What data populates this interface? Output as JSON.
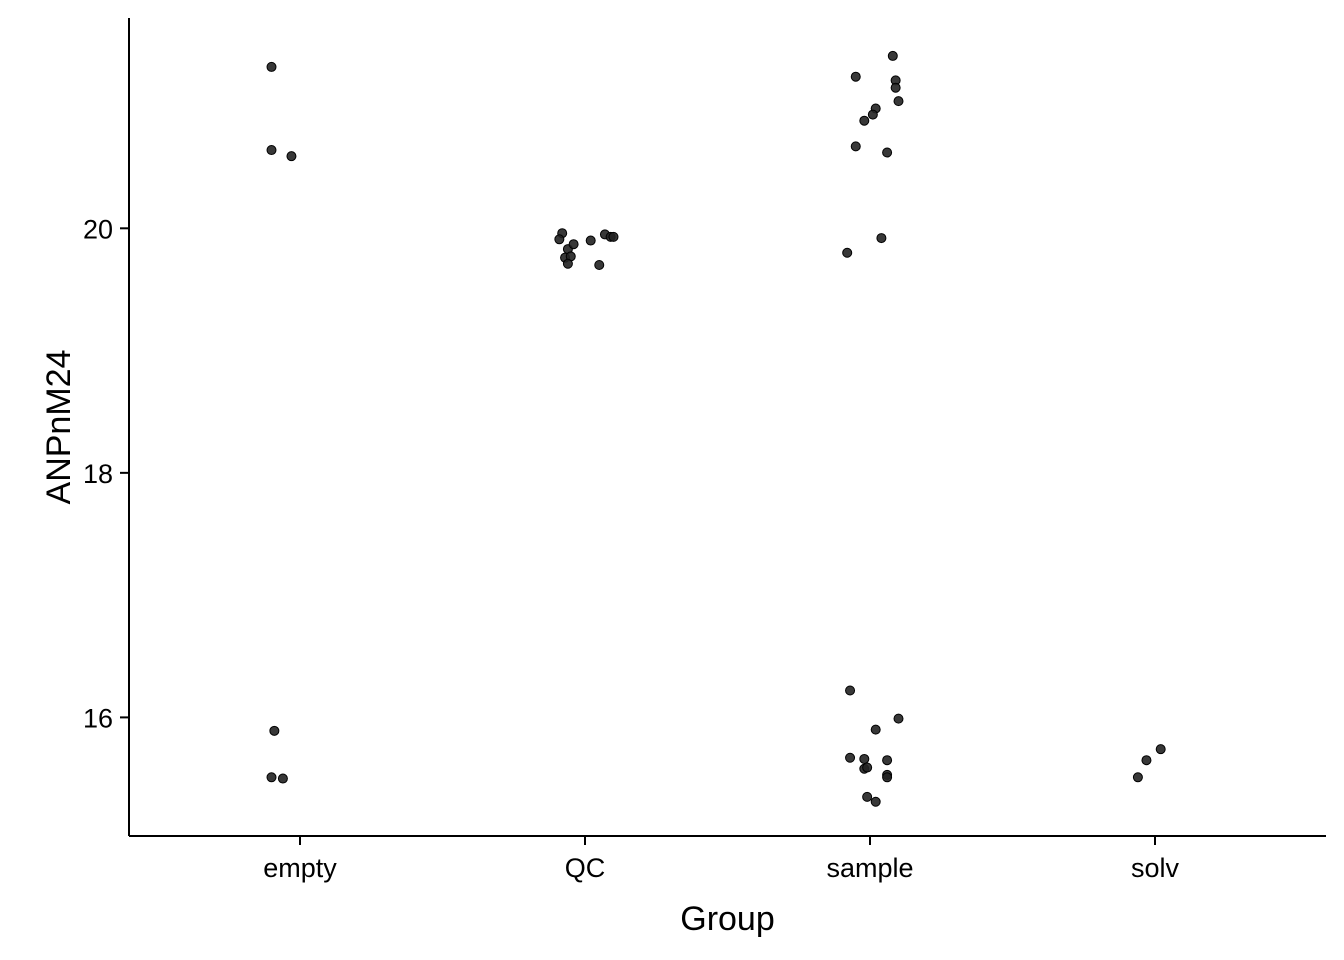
{
  "chart_data": {
    "type": "scatter",
    "title": "",
    "xlabel": "Group",
    "ylabel": "ANPnM24",
    "categories": [
      "empty",
      "QC",
      "sample",
      "solv"
    ],
    "y_ticks": [
      16,
      18,
      20
    ],
    "ylim": [
      15.03,
      21.72
    ],
    "grid": false,
    "legend": "none",
    "point_color": "#222222",
    "series": [
      {
        "category": "empty",
        "points": [
          {
            "x": -0.1,
            "y": 21.32
          },
          {
            "x": -0.1,
            "y": 20.64
          },
          {
            "x": -0.03,
            "y": 20.59
          },
          {
            "x": -0.09,
            "y": 15.89
          },
          {
            "x": -0.1,
            "y": 15.51
          },
          {
            "x": -0.06,
            "y": 15.5
          }
        ]
      },
      {
        "category": "QC",
        "points": [
          {
            "x": -0.08,
            "y": 19.96
          },
          {
            "x": -0.09,
            "y": 19.91
          },
          {
            "x": -0.06,
            "y": 19.83
          },
          {
            "x": -0.04,
            "y": 19.87
          },
          {
            "x": -0.07,
            "y": 19.76
          },
          {
            "x": -0.05,
            "y": 19.77
          },
          {
            "x": -0.06,
            "y": 19.71
          },
          {
            "x": 0.02,
            "y": 19.9
          },
          {
            "x": 0.07,
            "y": 19.95
          },
          {
            "x": 0.09,
            "y": 19.93
          },
          {
            "x": 0.1,
            "y": 19.93
          },
          {
            "x": 0.05,
            "y": 19.7
          }
        ]
      },
      {
        "category": "sample",
        "points": [
          {
            "x": 0.08,
            "y": 21.41
          },
          {
            "x": -0.05,
            "y": 21.24
          },
          {
            "x": 0.09,
            "y": 21.21
          },
          {
            "x": 0.09,
            "y": 21.15
          },
          {
            "x": 0.1,
            "y": 21.04
          },
          {
            "x": 0.02,
            "y": 20.98
          },
          {
            "x": 0.01,
            "y": 20.93
          },
          {
            "x": -0.02,
            "y": 20.88
          },
          {
            "x": -0.05,
            "y": 20.67
          },
          {
            "x": 0.06,
            "y": 20.62
          },
          {
            "x": 0.04,
            "y": 19.92
          },
          {
            "x": -0.08,
            "y": 19.8
          },
          {
            "x": -0.07,
            "y": 16.22
          },
          {
            "x": 0.1,
            "y": 15.99
          },
          {
            "x": 0.02,
            "y": 15.9
          },
          {
            "x": -0.07,
            "y": 15.67
          },
          {
            "x": -0.02,
            "y": 15.66
          },
          {
            "x": 0.06,
            "y": 15.65
          },
          {
            "x": -0.02,
            "y": 15.58
          },
          {
            "x": -0.01,
            "y": 15.59
          },
          {
            "x": 0.06,
            "y": 15.53
          },
          {
            "x": 0.06,
            "y": 15.51
          },
          {
            "x": -0.01,
            "y": 15.35
          },
          {
            "x": 0.02,
            "y": 15.31
          }
        ]
      },
      {
        "category": "solv",
        "points": [
          {
            "x": 0.02,
            "y": 15.74
          },
          {
            "x": -0.03,
            "y": 15.65
          },
          {
            "x": -0.06,
            "y": 15.51
          }
        ]
      }
    ]
  }
}
